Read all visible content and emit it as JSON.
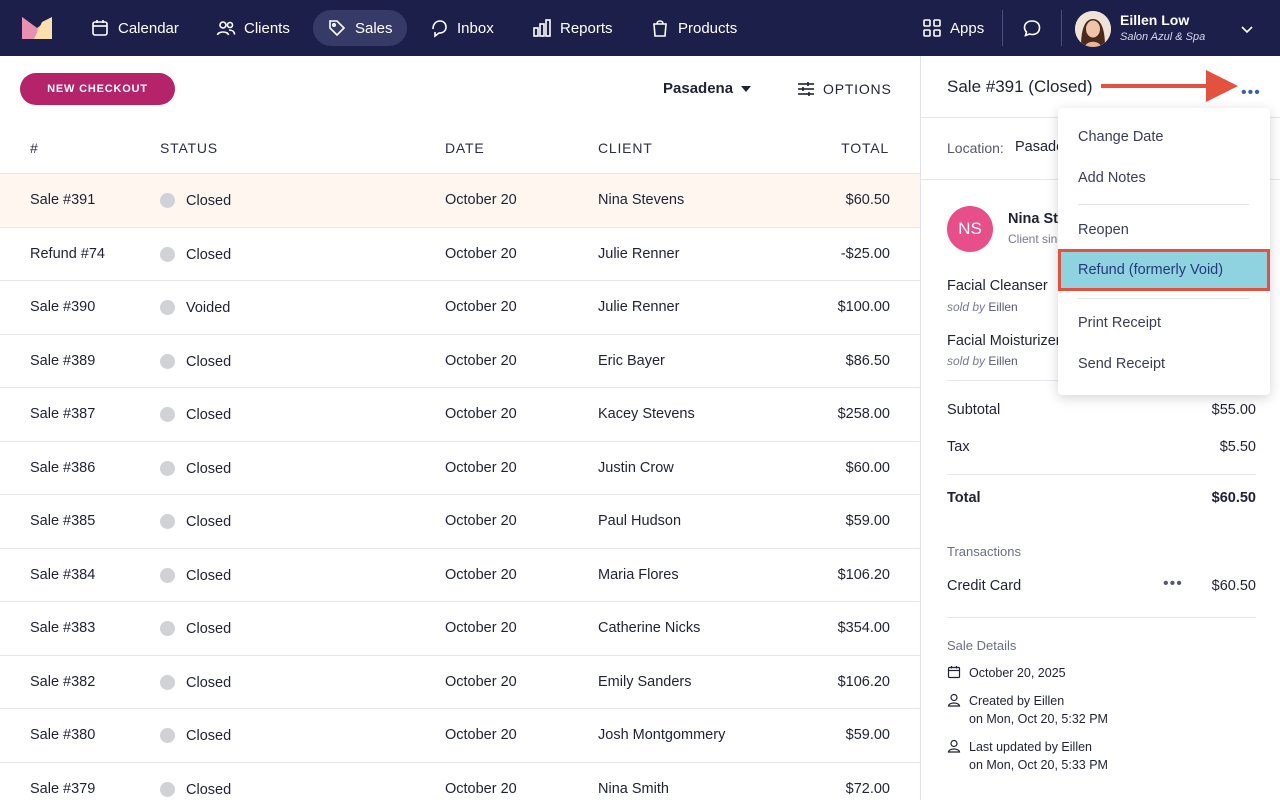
{
  "nav": {
    "items": [
      {
        "label": "Calendar",
        "icon": "calendar-icon"
      },
      {
        "label": "Clients",
        "icon": "clients-icon"
      },
      {
        "label": "Sales",
        "icon": "tag-icon"
      },
      {
        "label": "Inbox",
        "icon": "inbox-icon"
      },
      {
        "label": "Reports",
        "icon": "reports-icon"
      },
      {
        "label": "Products",
        "icon": "bag-icon"
      }
    ],
    "active": "Sales",
    "apps_label": "Apps",
    "user_name": "Eillen Low",
    "user_business": "Salon Azul & Spa"
  },
  "toolbar": {
    "new_checkout": "NEW CHECKOUT",
    "location": "Pasadena",
    "options": "OPTIONS"
  },
  "table": {
    "headers": {
      "num": "#",
      "status": "STATUS",
      "date": "DATE",
      "client": "CLIENT",
      "total": "TOTAL"
    },
    "rows": [
      {
        "num": "Sale #391",
        "status": "Closed",
        "date": "October 20",
        "client": "Nina Stevens",
        "total": "$60.50"
      },
      {
        "num": "Refund #74",
        "status": "Closed",
        "date": "October 20",
        "client": "Julie Renner",
        "total": "-$25.00"
      },
      {
        "num": "Sale #390",
        "status": "Voided",
        "date": "October 20",
        "client": "Julie Renner",
        "total": "$100.00"
      },
      {
        "num": "Sale #389",
        "status": "Closed",
        "date": "October 20",
        "client": "Eric Bayer",
        "total": "$86.50"
      },
      {
        "num": "Sale #387",
        "status": "Closed",
        "date": "October 20",
        "client": "Kacey Stevens",
        "total": "$258.00"
      },
      {
        "num": "Sale #386",
        "status": "Closed",
        "date": "October 20",
        "client": "Justin Crow",
        "total": "$60.00"
      },
      {
        "num": "Sale #385",
        "status": "Closed",
        "date": "October 20",
        "client": "Paul Hudson",
        "total": "$59.00"
      },
      {
        "num": "Sale #384",
        "status": "Closed",
        "date": "October 20",
        "client": "Maria Flores",
        "total": "$106.20"
      },
      {
        "num": "Sale #383",
        "status": "Closed",
        "date": "October 20",
        "client": "Catherine Nicks",
        "total": "$354.00"
      },
      {
        "num": "Sale #382",
        "status": "Closed",
        "date": "October 20",
        "client": "Emily Sanders",
        "total": "$106.20"
      },
      {
        "num": "Sale #380",
        "status": "Closed",
        "date": "October 20",
        "client": "Josh Montgommery",
        "total": "$59.00"
      },
      {
        "num": "Sale #379",
        "status": "Closed",
        "date": "October 20",
        "client": "Nina Smith",
        "total": "$72.00"
      }
    ]
  },
  "panel": {
    "title": "Sale #391 (Closed)",
    "location_label": "Location:",
    "location_value": "Pasadena",
    "client_initials": "NS",
    "client_name": "Nina Stevens",
    "client_since": "Client since",
    "items": [
      {
        "name": "Facial Cleanser",
        "sold_by_label": "sold by",
        "seller": "Eillen"
      },
      {
        "name": "Facial Moisturizer",
        "sold_by_label": "sold by",
        "seller": "Eillen"
      }
    ],
    "subtotal_label": "Subtotal",
    "subtotal": "$55.00",
    "tax_label": "Tax",
    "tax": "$5.50",
    "total_label": "Total",
    "total": "$60.50",
    "transactions_label": "Transactions",
    "transaction_method": "Credit Card",
    "transaction_amount": "$60.50",
    "details_label": "Sale Details",
    "sale_date": "October 20, 2025",
    "created_by": "Created by Eillen",
    "created_on": "on Mon, Oct 20, 5:32 PM",
    "updated_by": "Last updated by Eillen",
    "updated_on": "on Mon, Oct 20, 5:33 PM"
  },
  "menu": {
    "change_date": "Change Date",
    "add_notes": "Add Notes",
    "reopen": "Reopen",
    "refund": "Refund (formerly Void)",
    "print_receipt": "Print Receipt",
    "send_receipt": "Send Receipt"
  },
  "colors": {
    "nav_bg": "#1c1f4a",
    "brand": "#b5236b",
    "highlight": "#8fd3e0",
    "annotation": "#e3523f",
    "selected_row": "#fff6ef"
  }
}
